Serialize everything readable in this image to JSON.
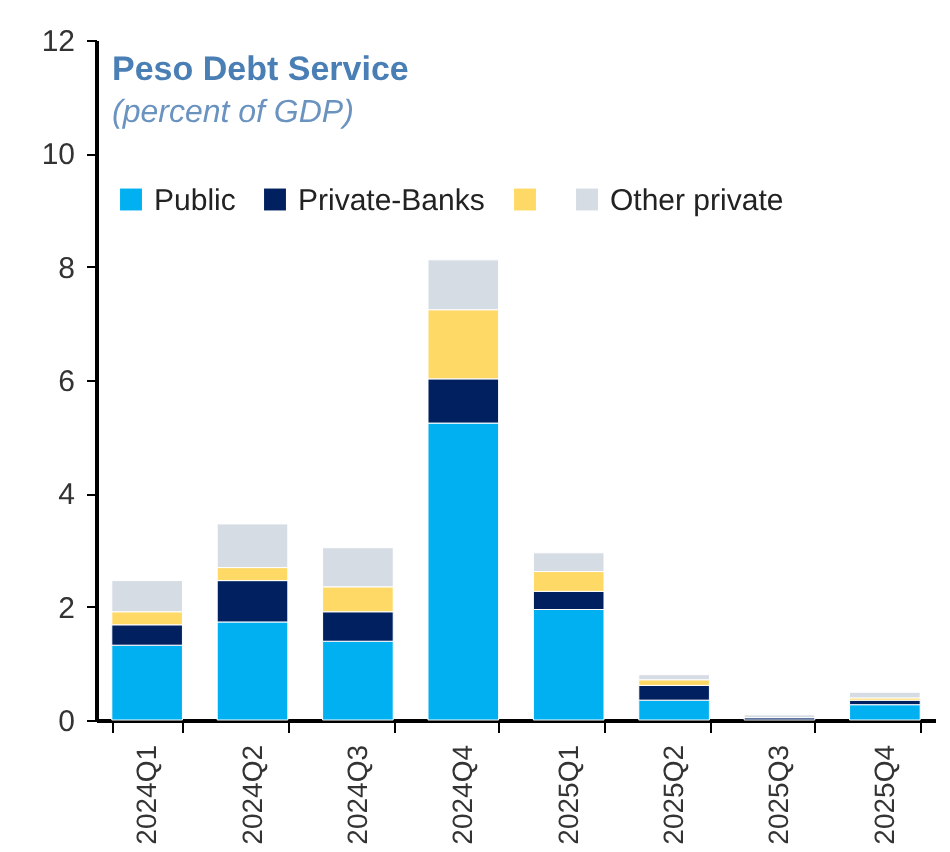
{
  "chart_data": {
    "type": "bar",
    "title": "Peso Debt Service",
    "subtitle": "(percent of GDP)",
    "categories": [
      "2024Q1",
      "2024Q2",
      "2024Q3",
      "2024Q4",
      "2025Q1",
      "2025Q2",
      "2025Q3",
      "2025Q4"
    ],
    "stacked": true,
    "series": [
      {
        "name": "Public",
        "color": "#00b0f0",
        "values": [
          1.32,
          1.73,
          1.39,
          5.24,
          1.95,
          0.35,
          null,
          0.27
        ]
      },
      {
        "name": "Private-Banks",
        "color": "#002060",
        "values": [
          0.36,
          0.73,
          0.52,
          0.78,
          0.32,
          0.26,
          0.04,
          0.08
        ]
      },
      {
        "color": "#ffd966",
        "values": [
          0.23,
          0.23,
          0.44,
          1.22,
          0.35,
          0.1,
          null,
          0.04
        ]
      },
      {
        "name": "Other private",
        "color": "#d6dce4",
        "values": [
          0.55,
          0.77,
          0.69,
          0.88,
          0.33,
          0.09,
          0.05,
          0.1
        ]
      }
    ],
    "ylim": [
      0,
      12
    ],
    "yticks": [
      0,
      2,
      4,
      6,
      8,
      10,
      12
    ],
    "grid": false,
    "legend": "top left"
  }
}
